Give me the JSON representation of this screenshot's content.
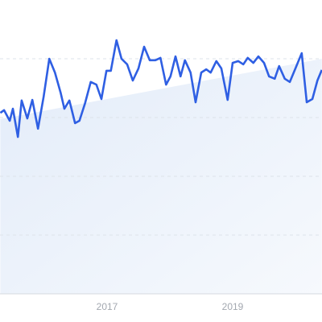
{
  "chart_data": {
    "type": "line",
    "x": [
      2015.3,
      2015.36,
      2015.45,
      2015.5,
      2015.58,
      2015.64,
      2015.73,
      2015.81,
      2015.9,
      2015.99,
      2016.08,
      2016.17,
      2016.26,
      2016.32,
      2016.4,
      2016.49,
      2016.56,
      2016.65,
      2016.74,
      2016.83,
      2016.91,
      2016.99,
      2017.06,
      2017.15,
      2017.23,
      2017.32,
      2017.41,
      2017.5,
      2017.59,
      2017.68,
      2017.77,
      2017.85,
      2017.94,
      2018.01,
      2018.09,
      2018.17,
      2018.24,
      2018.33,
      2018.41,
      2018.5,
      2018.58,
      2018.65,
      2018.74,
      2018.82,
      2018.92,
      2019.0,
      2019.09,
      2019.17,
      2019.24,
      2019.33,
      2019.41,
      2019.5,
      2019.58,
      2019.67,
      2019.74,
      2019.83,
      2019.91,
      2020.0,
      2020.1,
      2020.18,
      2020.27,
      2020.35,
      2020.42
    ],
    "series": [
      {
        "color": "#2f5fe3",
        "values": [
          61.6,
          62.5,
          58.9,
          63.0,
          53.4,
          65.8,
          59.7,
          66.0,
          56.2,
          67.1,
          80.0,
          75.3,
          68.5,
          63.0,
          65.8,
          58.1,
          58.9,
          64.9,
          72.1,
          71.2,
          66.3,
          75.9,
          75.9,
          86.3,
          80.0,
          78.1,
          72.6,
          76.7,
          84.1,
          79.5,
          79.5,
          80.3,
          71.2,
          74.0,
          80.8,
          74.0,
          79.5,
          75.3,
          65.2,
          75.3,
          76.4,
          75.3,
          79.2,
          76.7,
          66.0,
          78.6,
          79.2,
          78.1,
          80.3,
          78.6,
          80.8,
          78.6,
          74.0,
          73.2,
          77.5,
          73.2,
          72.1,
          76.7,
          81.9,
          65.2,
          66.3,
          72.6,
          76.2
        ]
      },
      {
        "type": "area",
        "color": "#e4eefa",
        "x": [
          2015.3,
          2020.42
        ],
        "values": [
          59.5,
          80.0
        ]
      }
    ],
    "xlim": [
      2015.295,
      2020.423
    ],
    "xticks": [
      2017,
      2019
    ],
    "ylim": [
      0,
      100
    ],
    "yticks": [
      0,
      20,
      40,
      60,
      80
    ],
    "grid": true
  }
}
